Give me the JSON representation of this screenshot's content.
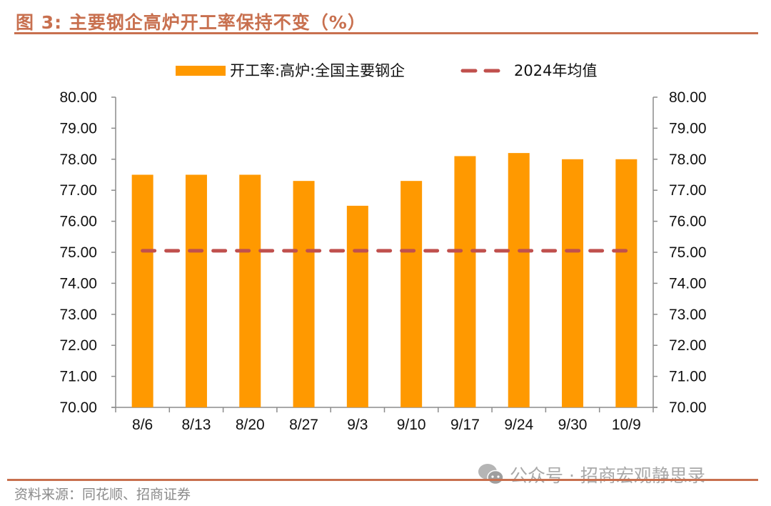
{
  "header": {
    "title": "图 3:  主要钢企高炉开工率保持不变（%）"
  },
  "footer": {
    "source": "资料来源：同花顺、招商证券",
    "watermark_text": "公众号 · 招商宏观静思录",
    "watermark_icon": "wechat-icon"
  },
  "colors": {
    "accent": "#c8704f",
    "bar": "#ff9900",
    "avg_line": "#c0504d",
    "axis": "#8c8c8c"
  },
  "chart_data": {
    "type": "bar",
    "title": "主要钢企高炉开工率保持不变（%）",
    "xlabel": "",
    "ylabel": "",
    "categories": [
      "8/6",
      "8/13",
      "8/20",
      "8/27",
      "9/3",
      "9/10",
      "9/17",
      "9/24",
      "9/30",
      "10/9"
    ],
    "series": [
      {
        "name": "开工率:高炉:全国主要钢企",
        "type": "bar",
        "values": [
          77.5,
          77.5,
          77.5,
          77.3,
          76.5,
          77.3,
          78.1,
          78.2,
          78.0,
          78.0
        ]
      },
      {
        "name": "2024年均值",
        "type": "line",
        "style": "dashed",
        "values": [
          75.05,
          75.05,
          75.05,
          75.05,
          75.05,
          75.05,
          75.05,
          75.05,
          75.05,
          75.05
        ]
      }
    ],
    "ylim": [
      70,
      80
    ],
    "y_ticks": [
      "80.00",
      "79.00",
      "78.00",
      "77.00",
      "76.00",
      "75.00",
      "74.00",
      "73.00",
      "72.00",
      "71.00",
      "70.00"
    ],
    "y_tick_values": [
      80,
      79,
      78,
      77,
      76,
      75,
      74,
      73,
      72,
      71,
      70
    ],
    "secondary_y_ticks": [
      "80.00",
      "79.00",
      "78.00",
      "77.00",
      "76.00",
      "75.00",
      "74.00",
      "73.00",
      "72.00",
      "71.00",
      "70.00"
    ],
    "legend_position": "top-center",
    "grid": false
  }
}
